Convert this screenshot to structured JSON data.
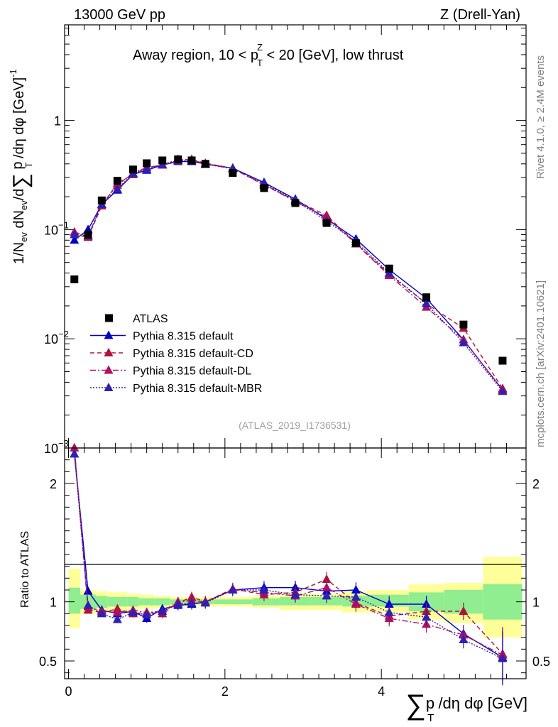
{
  "header": {
    "left": "13000 GeV pp",
    "right": "Z (Drell-Yan)"
  },
  "side_labels": {
    "rivet": "Rivet 4.1.0, ≥ 2.4M events",
    "mcplots": "mcplots.cern.ch [arXiv:2401.10621]"
  },
  "chart_data": [
    {
      "type": "scatter",
      "panel": "main",
      "title": "Away region, 10 < p_T^Z < 20 [GeV], low thrust",
      "title_parts": {
        "pre": "Away region, 10 < p",
        "sub": "T",
        "sup": "Z",
        "post": " < 20 [GeV], low thrust"
      },
      "ylabel": "1/N_ev dN_ev/d∑ p_T /dη dφ [GeV]^-1",
      "ylabel_parts": {
        "a": "1/N",
        "a_sub": "ev",
        "b": " dN",
        "b_sub": "ev",
        "c": "/d",
        "sum": "∑",
        "d": " p",
        "d_sub": "T",
        "e": " /dη dφ  [GeV]",
        "e_sup": "-1"
      },
      "yscale": "log",
      "ylim": [
        0.001,
        7.5
      ],
      "yticks": [
        {
          "v": 0.001,
          "base": "10",
          "exp": "−3"
        },
        {
          "v": 0.01,
          "base": "10",
          "exp": "−2"
        },
        {
          "v": 0.1,
          "base": "10",
          "exp": "−1"
        },
        {
          "v": 1,
          "base": "1",
          "exp": ""
        }
      ],
      "xlim": [
        -0.05,
        5.85
      ],
      "watermark": "(ATLAS_2019_I1736531)",
      "legend": [
        {
          "name": "ATLAS",
          "style": "square",
          "color": "#000000"
        },
        {
          "name": "Pythia 8.315 default",
          "style": "solid",
          "color": "#0000cc"
        },
        {
          "name": "Pythia 8.315 default-CD",
          "style": "dashed",
          "color": "#b0103a"
        },
        {
          "name": "Pythia 8.315 default-DL",
          "style": "dashdot",
          "color": "#b01060"
        },
        {
          "name": "Pythia 8.315 default-MBR",
          "style": "dotted",
          "color": "#3020b0"
        }
      ],
      "x": [
        0.075,
        0.25,
        0.425,
        0.625,
        0.825,
        1.0,
        1.2,
        1.4,
        1.575,
        1.75,
        2.1,
        2.5,
        2.9,
        3.3,
        3.675,
        4.1,
        4.575,
        5.05,
        5.55
      ],
      "data": {
        "name": "ATLAS",
        "values": [
          0.035,
          0.09,
          0.185,
          0.28,
          0.355,
          0.405,
          0.43,
          0.44,
          0.43,
          0.4,
          0.33,
          0.24,
          0.175,
          0.115,
          0.075,
          0.044,
          0.024,
          0.0135,
          0.0063
        ]
      },
      "series": [
        {
          "name": "Pythia 8.315 default",
          "color": "#0000cc",
          "dash": "",
          "values": [
            0.08,
            0.1,
            0.17,
            0.23,
            0.32,
            0.35,
            0.39,
            0.42,
            0.42,
            0.4,
            0.365,
            0.27,
            0.19,
            0.125,
            0.082,
            0.043,
            0.0235,
            0.0098,
            0.0034
          ]
        },
        {
          "name": "Pythia 8.315 default-CD",
          "color": "#b0103a",
          "dash": "6,4",
          "values": [
            0.09,
            0.085,
            0.165,
            0.265,
            0.32,
            0.37,
            0.39,
            0.425,
            0.44,
            0.405,
            0.365,
            0.255,
            0.185,
            0.135,
            0.075,
            0.039,
            0.021,
            0.0125,
            0.0035
          ]
        },
        {
          "name": "Pythia 8.315 default-DL",
          "color": "#b01060",
          "dash": "8,3,2,3",
          "values": [
            0.095,
            0.087,
            0.17,
            0.255,
            0.33,
            0.37,
            0.39,
            0.44,
            0.435,
            0.4,
            0.36,
            0.26,
            0.18,
            0.13,
            0.074,
            0.038,
            0.0195,
            0.0098,
            0.0034
          ]
        },
        {
          "name": "Pythia 8.315 default-MBR",
          "color": "#3020b0",
          "dash": "2,2",
          "values": [
            0.09,
            0.088,
            0.17,
            0.235,
            0.325,
            0.355,
            0.395,
            0.43,
            0.425,
            0.395,
            0.365,
            0.265,
            0.185,
            0.12,
            0.078,
            0.04,
            0.021,
            0.0092,
            0.0033
          ]
        }
      ]
    },
    {
      "type": "scatter",
      "panel": "ratio",
      "ylabel": "Ratio to ATLAS",
      "ylim": [
        0.35,
        2.3
      ],
      "yticks": [
        0.5,
        1,
        2
      ],
      "xlabel_parts": {
        "sum": "∑",
        "a": "p",
        "a_sub": "T",
        "b": " /dη dφ [GeV]"
      },
      "xticks": [
        0,
        2,
        4
      ],
      "xlim": [
        -0.05,
        5.85
      ],
      "bins": [
        {
          "lo": 0.0,
          "hi": 0.15,
          "g": [
            0.9,
            1.12
          ],
          "y": [
            0.78,
            1.28
          ]
        },
        {
          "lo": 0.15,
          "hi": 0.35,
          "g": [
            0.94,
            1.06
          ],
          "y": [
            0.9,
            1.1
          ]
        },
        {
          "lo": 0.35,
          "hi": 0.5,
          "g": [
            0.95,
            1.05
          ],
          "y": [
            0.91,
            1.09
          ]
        },
        {
          "lo": 0.5,
          "hi": 0.75,
          "g": [
            0.96,
            1.04
          ],
          "y": [
            0.92,
            1.08
          ]
        },
        {
          "lo": 0.75,
          "hi": 0.9,
          "g": [
            0.96,
            1.04
          ],
          "y": [
            0.93,
            1.07
          ]
        },
        {
          "lo": 0.9,
          "hi": 1.1,
          "g": [
            0.97,
            1.03
          ],
          "y": [
            0.94,
            1.06
          ]
        },
        {
          "lo": 1.1,
          "hi": 1.3,
          "g": [
            0.97,
            1.03
          ],
          "y": [
            0.95,
            1.05
          ]
        },
        {
          "lo": 1.3,
          "hi": 1.5,
          "g": [
            0.98,
            1.02
          ],
          "y": [
            0.96,
            1.04
          ]
        },
        {
          "lo": 1.5,
          "hi": 1.65,
          "g": [
            0.98,
            1.02
          ],
          "y": [
            0.96,
            1.04
          ]
        },
        {
          "lo": 1.65,
          "hi": 1.85,
          "g": [
            0.98,
            1.02
          ],
          "y": [
            0.96,
            1.04
          ]
        },
        {
          "lo": 1.85,
          "hi": 2.35,
          "g": [
            0.98,
            1.02
          ],
          "y": [
            0.96,
            1.04
          ]
        },
        {
          "lo": 2.35,
          "hi": 2.7,
          "g": [
            0.97,
            1.03
          ],
          "y": [
            0.95,
            1.05
          ]
        },
        {
          "lo": 2.7,
          "hi": 3.1,
          "g": [
            0.97,
            1.04
          ],
          "y": [
            0.93,
            1.07
          ]
        },
        {
          "lo": 3.1,
          "hi": 3.5,
          "g": [
            0.97,
            1.04
          ],
          "y": [
            0.93,
            1.07
          ]
        },
        {
          "lo": 3.5,
          "hi": 3.85,
          "g": [
            0.96,
            1.05
          ],
          "y": [
            0.91,
            1.09
          ]
        },
        {
          "lo": 3.85,
          "hi": 4.35,
          "g": [
            0.96,
            1.06
          ],
          "y": [
            0.91,
            1.1
          ]
        },
        {
          "lo": 4.35,
          "hi": 4.8,
          "g": [
            0.92,
            1.08
          ],
          "y": [
            0.85,
            1.15
          ]
        },
        {
          "lo": 4.8,
          "hi": 5.3,
          "g": [
            0.9,
            1.1
          ],
          "y": [
            0.82,
            1.16
          ]
        },
        {
          "lo": 5.3,
          "hi": 5.8,
          "g": [
            0.85,
            1.15
          ],
          "y": [
            0.7,
            1.38
          ]
        }
      ],
      "x": [
        0.075,
        0.25,
        0.425,
        0.625,
        0.825,
        1.0,
        1.2,
        1.4,
        1.575,
        1.75,
        2.1,
        2.5,
        2.9,
        3.3,
        3.675,
        4.1,
        4.575,
        5.05,
        5.55
      ],
      "series": [
        {
          "name": "Pythia 8.315 default",
          "color": "#0000cc",
          "dash": "",
          "values": [
            2.25,
            1.09,
            0.93,
            0.9,
            0.92,
            0.86,
            0.94,
            0.97,
            0.98,
            1.0,
            1.1,
            1.12,
            1.12,
            1.09,
            1.1,
            0.98,
            0.98,
            0.73,
            0.53
          ]
        },
        {
          "name": "Pythia 8.315 default-CD",
          "color": "#b0103a",
          "dash": "6,4",
          "values": [
            2.3,
            0.93,
            0.91,
            0.94,
            0.9,
            0.91,
            0.9,
            0.99,
            1.04,
            1.0,
            1.11,
            1.06,
            1.08,
            1.19,
            0.99,
            0.88,
            0.92,
            0.92,
            0.56
          ]
        },
        {
          "name": "Pythia 8.315 default-DL",
          "color": "#b01060",
          "dash": "8,3,2,3",
          "values": [
            2.3,
            0.96,
            0.92,
            0.91,
            0.93,
            0.91,
            0.92,
            1.0,
            1.01,
            1.0,
            1.1,
            1.08,
            1.05,
            1.12,
            0.98,
            0.86,
            0.81,
            0.72,
            0.55
          ]
        },
        {
          "name": "Pythia 8.315 default-MBR",
          "color": "#3020b0",
          "dash": "2,2",
          "values": [
            2.25,
            0.97,
            0.9,
            0.85,
            0.91,
            0.89,
            0.92,
            0.98,
            0.99,
            0.99,
            1.1,
            1.1,
            1.06,
            1.05,
            1.04,
            0.91,
            0.87,
            0.68,
            0.52
          ]
        }
      ]
    }
  ]
}
